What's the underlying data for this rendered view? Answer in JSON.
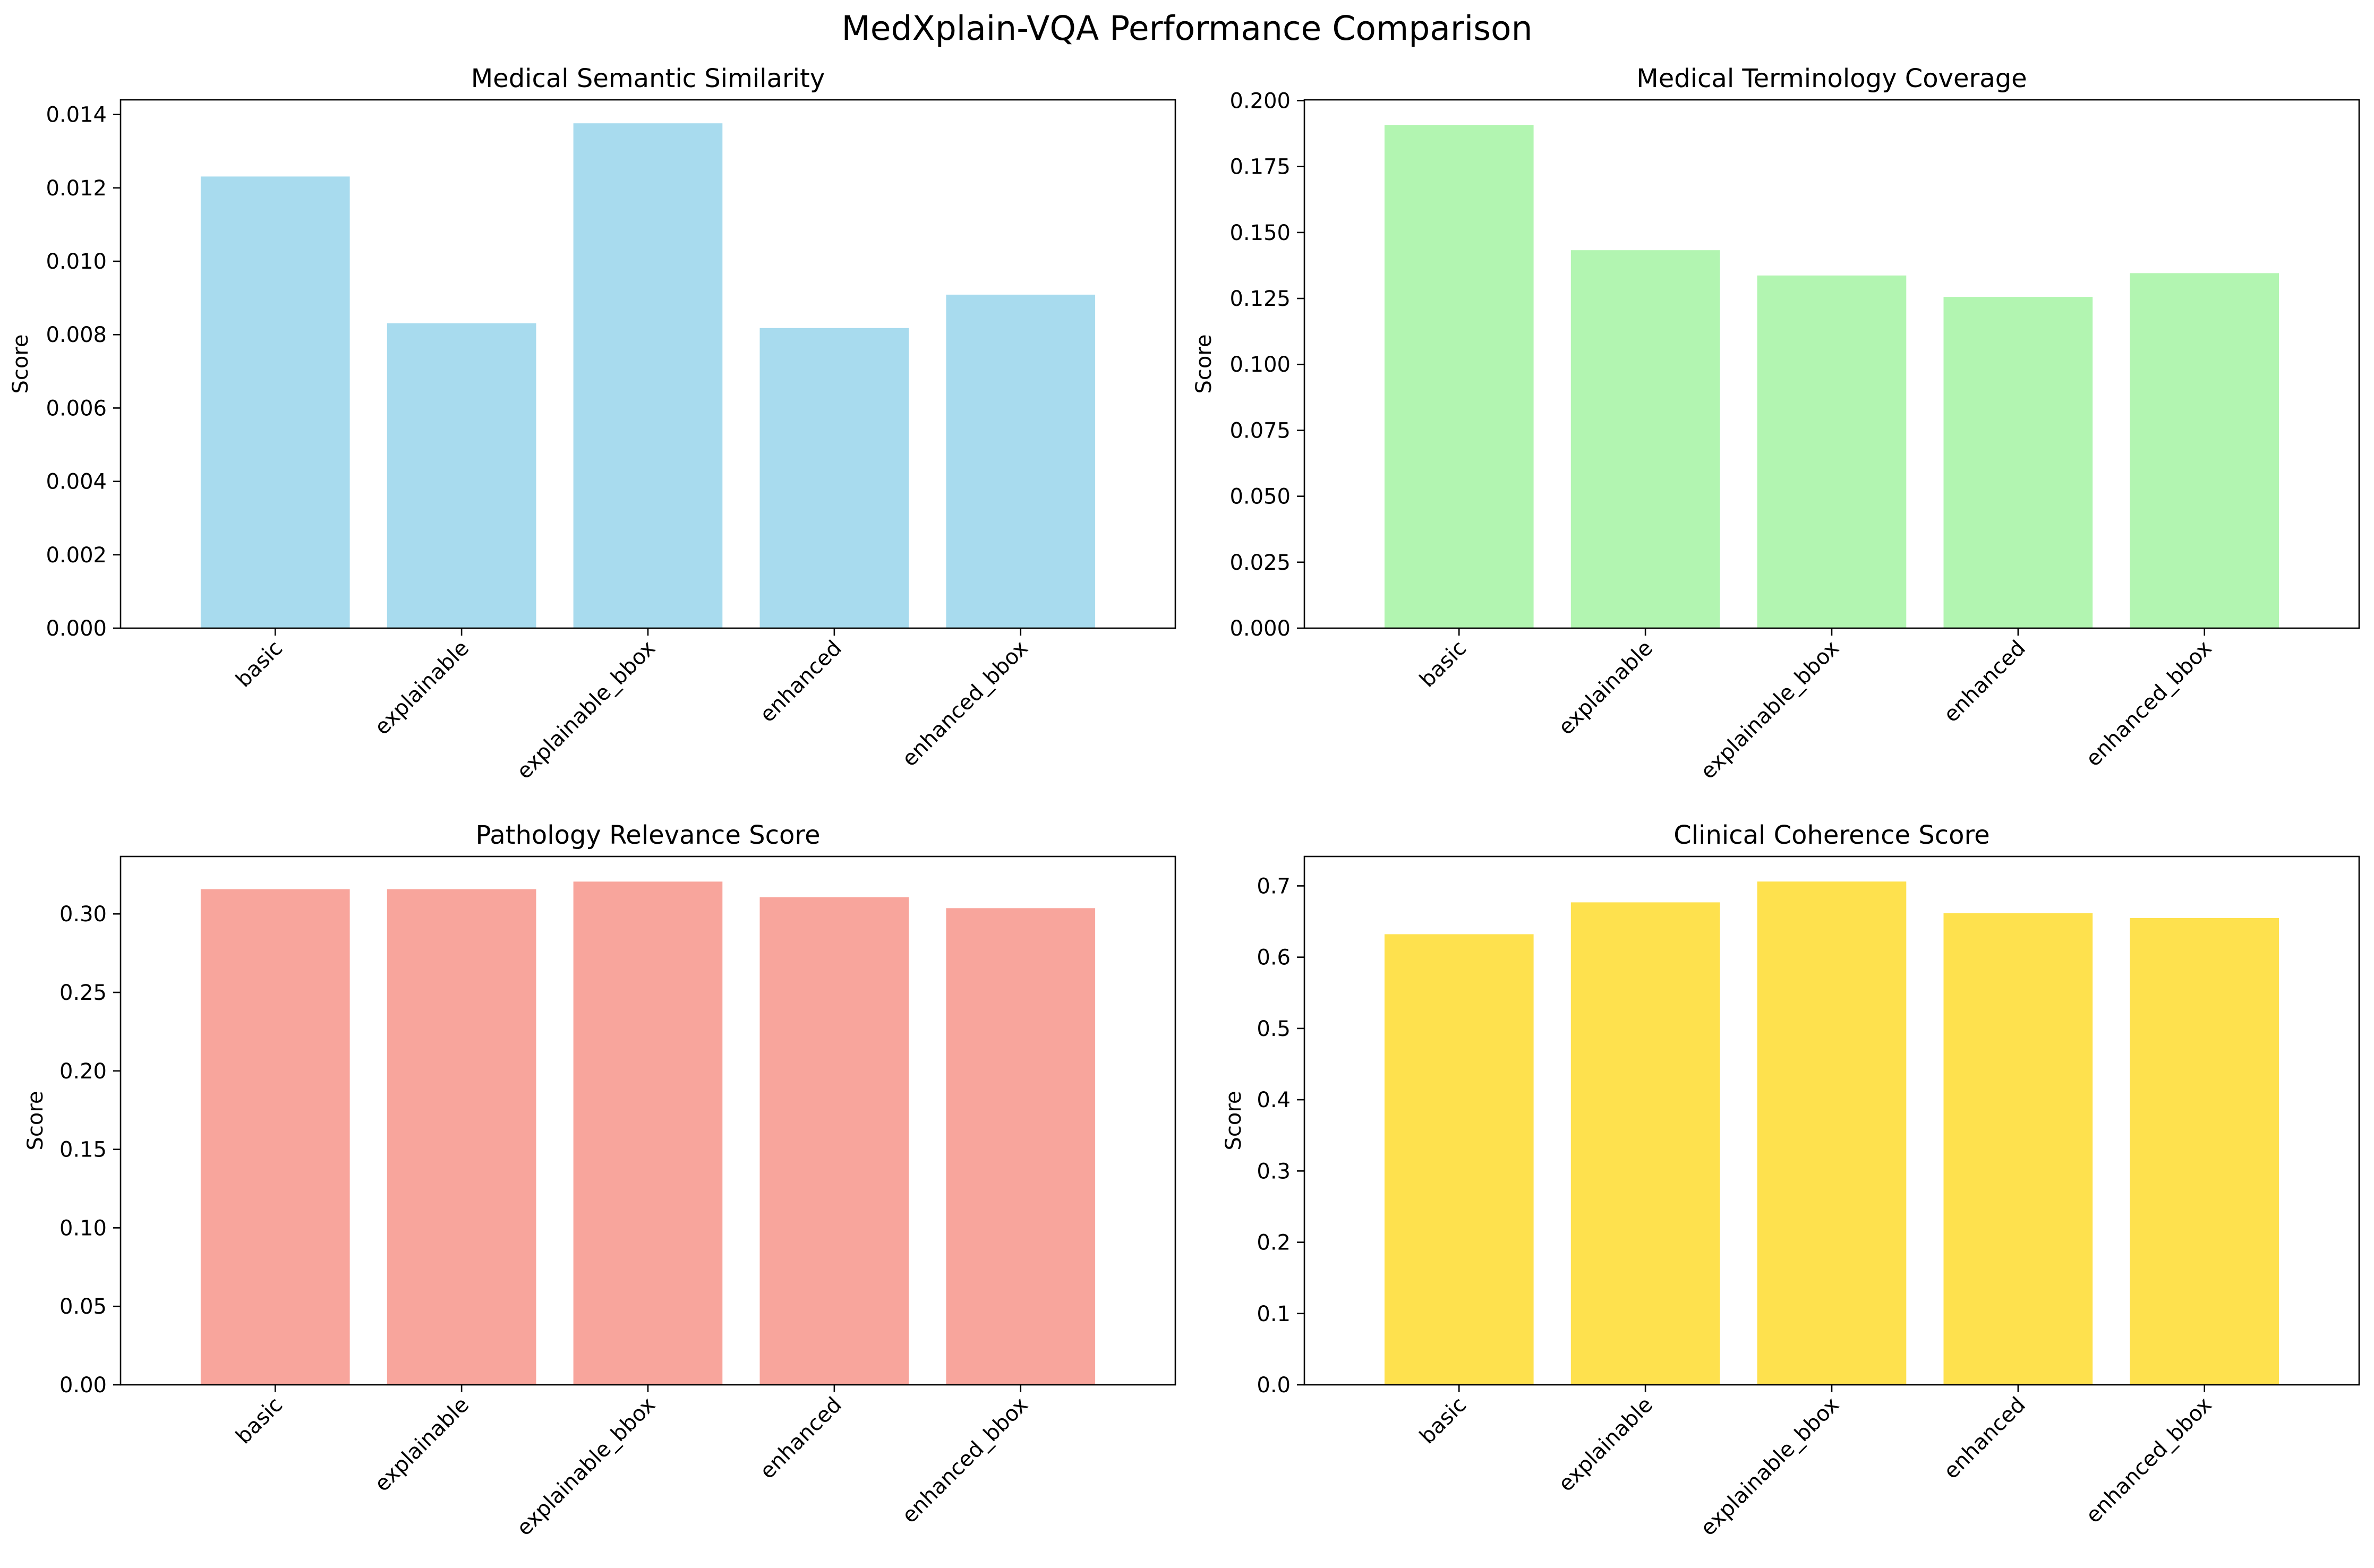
{
  "figure": {
    "title": "MedXplain-VQA Performance Comparison"
  },
  "chart_data": [
    {
      "type": "bar",
      "title": "Medical Semantic Similarity",
      "xlabel": "",
      "ylabel": "Score",
      "categories": [
        "basic",
        "explainable",
        "explainable_bbox",
        "enhanced",
        "enhanced_bbox"
      ],
      "values": [
        0.01231,
        0.00831,
        0.01376,
        0.00818,
        0.00909
      ],
      "ylim": [
        0,
        0.0144
      ],
      "ticks": [
        0,
        0.002,
        0.004,
        0.006,
        0.008,
        0.01,
        0.012,
        0.014
      ],
      "tick_labels": [
        "0.000",
        "0.002",
        "0.004",
        "0.006",
        "0.008",
        "0.010",
        "0.012",
        "0.014"
      ],
      "color": "#a8dbee",
      "grid": false
    },
    {
      "type": "bar",
      "title": "Medical Terminology Coverage",
      "xlabel": "",
      "ylabel": "Score",
      "categories": [
        "basic",
        "explainable",
        "explainable_bbox",
        "enhanced",
        "enhanced_bbox"
      ],
      "values": [
        0.1908,
        0.1433,
        0.1337,
        0.1256,
        0.1346
      ],
      "ylim": [
        0,
        0.2003
      ],
      "ticks": [
        0,
        0.025,
        0.05,
        0.075,
        0.1,
        0.125,
        0.15,
        0.175,
        0.2
      ],
      "tick_labels": [
        "0.000",
        "0.025",
        "0.050",
        "0.075",
        "0.100",
        "0.125",
        "0.150",
        "0.175",
        "0.200"
      ],
      "color": "#b2f5b1",
      "grid": false
    },
    {
      "type": "bar",
      "title": "Pathology Relevance Score",
      "xlabel": "",
      "ylabel": "Score",
      "categories": [
        "basic",
        "explainable",
        "explainable_bbox",
        "enhanced",
        "enhanced_bbox"
      ],
      "values": [
        0.3158,
        0.3158,
        0.3206,
        0.3107,
        0.3037
      ],
      "ylim": [
        0,
        0.3366
      ],
      "ticks": [
        0,
        0.05,
        0.1,
        0.15,
        0.2,
        0.25,
        0.3
      ],
      "tick_labels": [
        "0.00",
        "0.05",
        "0.10",
        "0.15",
        "0.20",
        "0.25",
        "0.30"
      ],
      "color": "#f8a59c",
      "grid": false
    },
    {
      "type": "bar",
      "title": "Clinical Coherence Score",
      "xlabel": "",
      "ylabel": "Score",
      "categories": [
        "basic",
        "explainable",
        "explainable_bbox",
        "enhanced",
        "enhanced_bbox"
      ],
      "values": [
        0.6322,
        0.6769,
        0.7061,
        0.6618,
        0.6549
      ],
      "ylim": [
        0,
        0.7413
      ],
      "ticks": [
        0,
        0.1,
        0.2,
        0.3,
        0.4,
        0.5,
        0.6,
        0.7
      ],
      "tick_labels": [
        "0.0",
        "0.1",
        "0.2",
        "0.3",
        "0.4",
        "0.5",
        "0.6",
        "0.7"
      ],
      "color": "#fee14e",
      "grid": false
    }
  ]
}
